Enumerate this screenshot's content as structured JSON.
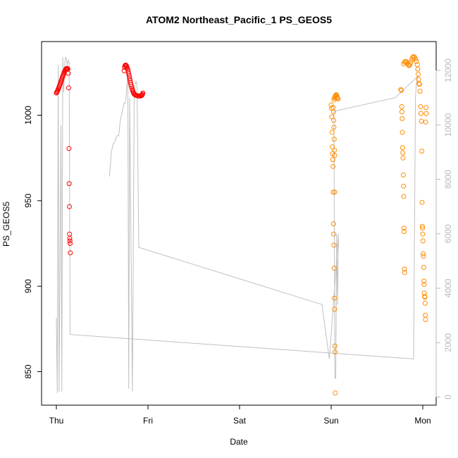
{
  "chart_data": {
    "type": "scatter",
    "title": "ATOM2 Northeast_Pacific_1 PS_GEOS5",
    "xlabel": "Date",
    "ylabel": "PS_GEOS5",
    "xlim": [
      0,
      4.15
    ],
    "ylim": [
      833,
      1038
    ],
    "y2lim": [
      -400,
      13200
    ],
    "x_ticks": [
      {
        "value": 0,
        "label": "Thu"
      },
      {
        "value": 1,
        "label": "Fri"
      },
      {
        "value": 2,
        "label": "Sat"
      },
      {
        "value": 3,
        "label": "Sun"
      },
      {
        "value": 4,
        "label": "Mon"
      }
    ],
    "y_ticks": [
      {
        "value": 850,
        "label": "850"
      },
      {
        "value": 900,
        "label": "900"
      },
      {
        "value": 950,
        "label": "950"
      },
      {
        "value": 1000,
        "label": "1000"
      }
    ],
    "y2_ticks": [
      {
        "value": 0,
        "label": "0"
      },
      {
        "value": 2000,
        "label": "2000"
      },
      {
        "value": 4000,
        "label": "4000"
      },
      {
        "value": 6000,
        "label": "6000"
      },
      {
        "value": 8000,
        "label": "8000"
      },
      {
        "value": 10000,
        "label": "10000"
      },
      {
        "value": 12000,
        "label": "12000"
      }
    ],
    "colors": {
      "red_series": "#ff0000",
      "orange_series": "#ff8c00",
      "altitude_line": "#c0c0c0"
    },
    "series": [
      {
        "axis": "left",
        "color": "red",
        "points": [
          [
            0.0,
            1013.0
          ],
          [
            0.005,
            1013.5
          ],
          [
            0.01,
            1014.0
          ],
          [
            0.015,
            1014.6
          ],
          [
            0.02,
            1015.2
          ],
          [
            0.025,
            1015.9
          ],
          [
            0.03,
            1016.6
          ],
          [
            0.035,
            1017.3
          ],
          [
            0.04,
            1018.0
          ],
          [
            0.045,
            1018.8
          ],
          [
            0.05,
            1019.6
          ],
          [
            0.055,
            1020.4
          ],
          [
            0.06,
            1021.2
          ],
          [
            0.065,
            1022.0
          ],
          [
            0.07,
            1022.8
          ],
          [
            0.075,
            1023.5
          ],
          [
            0.08,
            1024.2
          ],
          [
            0.085,
            1024.9
          ],
          [
            0.09,
            1025.5
          ],
          [
            0.095,
            1026.1
          ],
          [
            0.1,
            1026.6
          ],
          [
            0.105,
            1027.0
          ],
          [
            0.11,
            1027.3
          ],
          [
            0.115,
            1027.4
          ],
          [
            0.12,
            1027.3
          ],
          [
            0.125,
            1027.0
          ],
          [
            0.13,
            1024.5
          ],
          [
            0.135,
            1016.0
          ],
          [
            0.138,
            980.5
          ],
          [
            0.14,
            960.0
          ],
          [
            0.142,
            946.5
          ],
          [
            0.144,
            930.5
          ],
          [
            0.146,
            928.0
          ],
          [
            0.148,
            926.5
          ],
          [
            0.15,
            925.0
          ],
          [
            0.152,
            919.5
          ],
          [
            0.74,
            1026.0
          ],
          [
            0.745,
            1028.0
          ],
          [
            0.75,
            1029.0
          ],
          [
            0.755,
            1029.3
          ],
          [
            0.76,
            1029.2
          ],
          [
            0.765,
            1028.8
          ],
          [
            0.77,
            1028.2
          ],
          [
            0.775,
            1027.4
          ],
          [
            0.78,
            1026.5
          ],
          [
            0.785,
            1025.4
          ],
          [
            0.79,
            1024.2
          ],
          [
            0.795,
            1022.9
          ],
          [
            0.8,
            1021.6
          ],
          [
            0.805,
            1020.3
          ],
          [
            0.81,
            1019.1
          ],
          [
            0.815,
            1017.9
          ],
          [
            0.82,
            1016.8
          ],
          [
            0.825,
            1015.8
          ],
          [
            0.83,
            1014.9
          ],
          [
            0.835,
            1014.1
          ],
          [
            0.84,
            1013.4
          ],
          [
            0.845,
            1012.8
          ],
          [
            0.85,
            1012.3
          ],
          [
            0.86,
            1011.9
          ],
          [
            0.87,
            1011.6
          ],
          [
            0.88,
            1011.4
          ],
          [
            0.89,
            1011.3
          ],
          [
            0.9,
            1011.2
          ],
          [
            0.91,
            1011.2
          ],
          [
            0.92,
            1011.3
          ],
          [
            0.93,
            1011.5
          ],
          [
            0.935,
            1011.8
          ],
          [
            0.94,
            1012.3
          ],
          [
            0.945,
            1013.0
          ]
        ]
      },
      {
        "axis": "left",
        "color": "orange",
        "points": [
          [
            3.0,
            1006.0
          ],
          [
            3.005,
            1004.0
          ],
          [
            3.007,
            999.0
          ],
          [
            3.01,
            990.0
          ],
          [
            3.012,
            981.5
          ],
          [
            3.015,
            977.5
          ],
          [
            3.017,
            974.0
          ],
          [
            3.02,
            970.0
          ],
          [
            3.022,
            955.0
          ],
          [
            3.025,
            936.5
          ],
          [
            3.027,
            930.5
          ],
          [
            3.03,
            924.0
          ],
          [
            3.032,
            910.5
          ],
          [
            3.035,
            893.0
          ],
          [
            3.038,
            886.5
          ],
          [
            3.04,
            865.0
          ],
          [
            3.042,
            861.5
          ],
          [
            3.045,
            837.5
          ],
          [
            3.02,
            1004.5
          ],
          [
            3.025,
            1002.0
          ],
          [
            3.028,
            997.0
          ],
          [
            3.03,
            993.0
          ],
          [
            3.033,
            986.0
          ],
          [
            3.035,
            979.5
          ],
          [
            3.038,
            976.5
          ],
          [
            3.04,
            955.0
          ],
          [
            3.03,
            1009.0
          ],
          [
            3.035,
            1010.0
          ],
          [
            3.04,
            1010.5
          ],
          [
            3.045,
            1011.0
          ],
          [
            3.05,
            1011.5
          ],
          [
            3.055,
            1012.0
          ],
          [
            3.06,
            1011.5
          ],
          [
            3.065,
            1010.5
          ],
          [
            3.07,
            1010.0
          ],
          [
            3.075,
            1009.5
          ],
          [
            3.76,
            1015.0
          ],
          [
            3.765,
            1014.5
          ],
          [
            3.77,
            1005.0
          ],
          [
            3.772,
            1002.0
          ],
          [
            3.775,
            998.0
          ],
          [
            3.778,
            990.0
          ],
          [
            3.78,
            981.0
          ],
          [
            3.782,
            978.0
          ],
          [
            3.785,
            975.0
          ],
          [
            3.788,
            965.0
          ],
          [
            3.79,
            958.5
          ],
          [
            3.792,
            952.5
          ],
          [
            3.795,
            934.0
          ],
          [
            3.797,
            932.0
          ],
          [
            3.8,
            910.0
          ],
          [
            3.802,
            908.0
          ],
          [
            3.79,
            1030.0
          ],
          [
            3.8,
            1031.0
          ],
          [
            3.81,
            1031.5
          ],
          [
            3.82,
            1031.3
          ],
          [
            3.83,
            1030.5
          ],
          [
            3.84,
            1029.5
          ],
          [
            3.85,
            1029.0
          ],
          [
            3.86,
            1029.5
          ],
          [
            3.87,
            1031.0
          ],
          [
            3.88,
            1032.5
          ],
          [
            3.89,
            1033.8
          ],
          [
            3.9,
            1034.3
          ],
          [
            3.91,
            1034.0
          ],
          [
            3.92,
            1033.0
          ],
          [
            3.93,
            1031.5
          ],
          [
            3.94,
            1029.5
          ],
          [
            3.945,
            1027.0
          ],
          [
            3.95,
            1024.0
          ],
          [
            3.955,
            1021.0
          ],
          [
            3.96,
            1018.5
          ],
          [
            3.965,
            1018.0
          ],
          [
            3.97,
            1014.0
          ],
          [
            3.975,
            1005.0
          ],
          [
            3.98,
            1001.0
          ],
          [
            3.985,
            996.5
          ],
          [
            3.99,
            979.0
          ],
          [
            3.992,
            949.0
          ],
          [
            3.995,
            935.0
          ],
          [
            3.997,
            934.0
          ],
          [
            4.0,
            930.5
          ],
          [
            4.002,
            926.5
          ],
          [
            4.005,
            919.0
          ],
          [
            4.007,
            917.5
          ],
          [
            4.01,
            911.0
          ],
          [
            4.012,
            903.0
          ],
          [
            4.015,
            901.0
          ],
          [
            4.017,
            896.0
          ],
          [
            4.02,
            894.0
          ],
          [
            4.022,
            893.5
          ],
          [
            4.025,
            890.0
          ],
          [
            4.028,
            883.0
          ],
          [
            4.03,
            880.5
          ],
          [
            4.032,
            996.0
          ],
          [
            4.035,
            1004.5
          ],
          [
            4.038,
            1001.0
          ]
        ]
      },
      {
        "axis": "right",
        "color": "gray",
        "type": "line",
        "points": [
          [
            0.0,
            2900
          ],
          [
            0.01,
            150
          ],
          [
            0.02,
            12200
          ],
          [
            0.03,
            200
          ],
          [
            0.05,
            10000
          ],
          [
            0.06,
            200
          ],
          [
            0.07,
            12500
          ],
          [
            0.08,
            11200
          ],
          [
            0.09,
            12200
          ],
          [
            0.1,
            12500
          ],
          [
            0.11,
            12400
          ],
          [
            0.12,
            12200
          ],
          [
            0.13,
            12400
          ],
          [
            0.14,
            12300
          ],
          [
            0.15,
            2300
          ],
          [
            3.9,
            1400
          ],
          [
            3.92,
            11000
          ],
          [
            3.93,
            11500
          ],
          [
            3.94,
            11700
          ],
          [
            3.95,
            11800
          ],
          [
            3.7,
            11000
          ],
          [
            3.03,
            10500
          ],
          [
            3.04,
            700
          ],
          [
            3.05,
            700
          ],
          [
            3.06,
            6000
          ],
          [
            3.07,
            3400
          ],
          [
            3.08,
            6000
          ],
          [
            2.98,
            1400
          ],
          [
            2.9,
            3400
          ],
          [
            0.9,
            5500
          ],
          [
            0.88,
            11500
          ],
          [
            0.87,
            11600
          ],
          [
            0.86,
            11500
          ],
          [
            0.85,
            11200
          ],
          [
            0.84,
            5300
          ],
          [
            0.83,
            200
          ],
          [
            0.8,
            11000
          ],
          [
            0.79,
            300
          ],
          [
            0.78,
            12000
          ],
          [
            0.77,
            11500
          ],
          [
            0.76,
            11000
          ],
          [
            0.75,
            10800
          ],
          [
            0.74,
            10800
          ],
          [
            0.72,
            10500
          ],
          [
            0.7,
            10200
          ],
          [
            0.68,
            9600
          ],
          [
            0.66,
            9600
          ],
          [
            0.64,
            9400
          ],
          [
            0.62,
            9300
          ],
          [
            0.6,
            9000
          ],
          [
            0.58,
            8100
          ]
        ]
      }
    ]
  }
}
